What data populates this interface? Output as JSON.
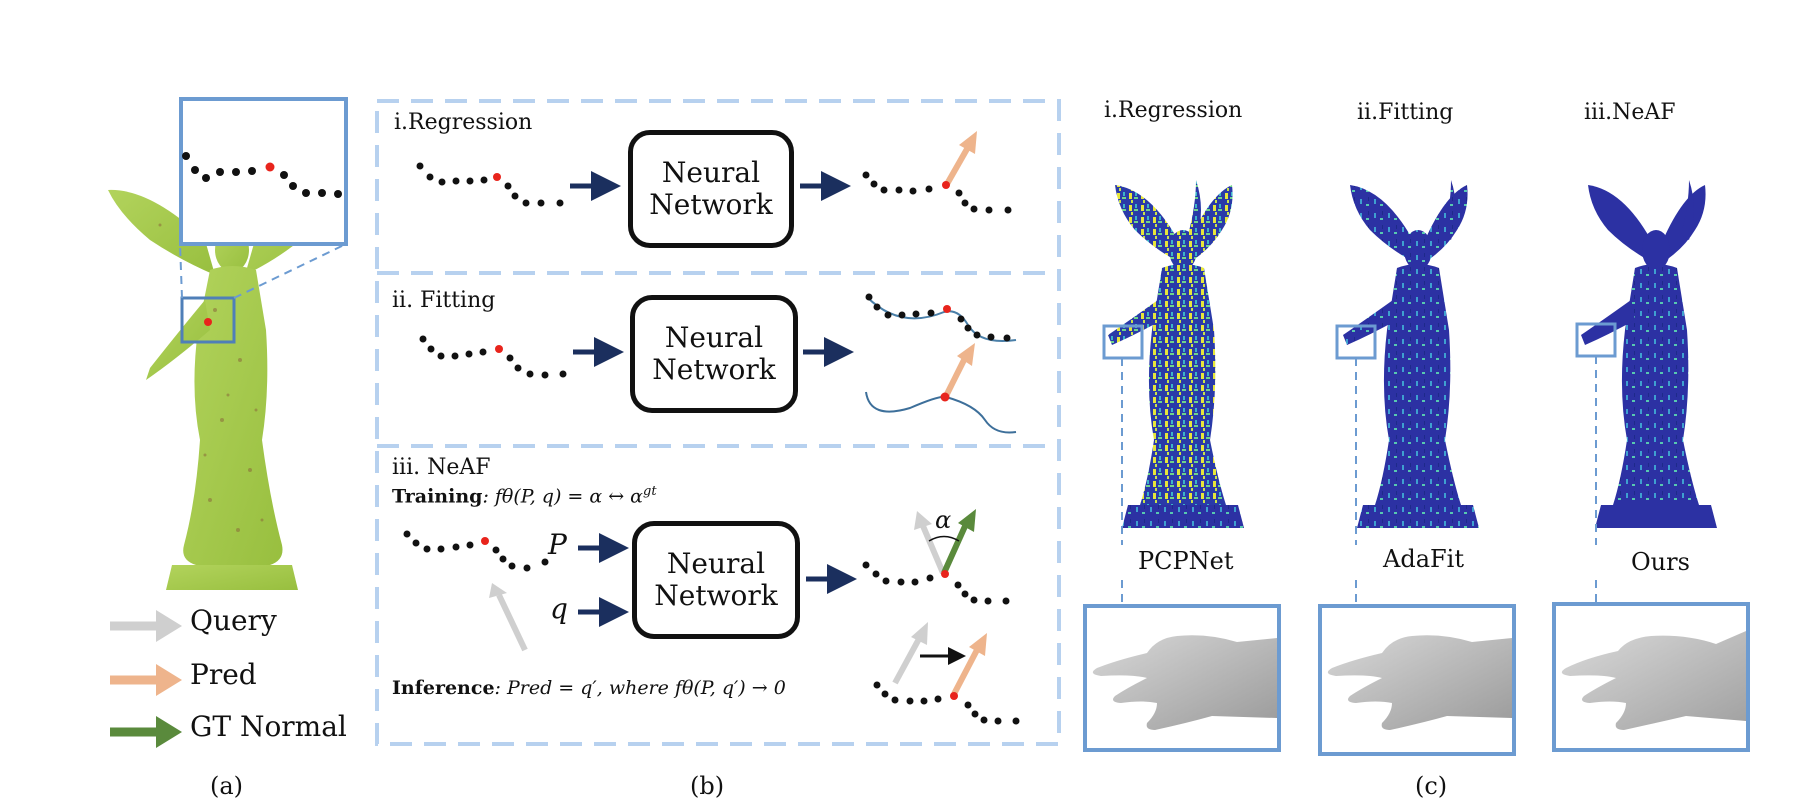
{
  "panel_a": {
    "caption": "(a)",
    "legend": [
      {
        "label": "Query",
        "color": "#cfcfcf"
      },
      {
        "label": "Pred",
        "color": "#eeb48c"
      },
      {
        "label": "GT Normal",
        "color": "#5a8a3c"
      }
    ]
  },
  "panel_b": {
    "caption": "(b)",
    "regression": {
      "title": "i.Regression",
      "box_label_1": "Neural",
      "box_label_2": "Network"
    },
    "fitting": {
      "title": "ii. Fitting",
      "box_label_1": "Neural",
      "box_label_2": "Network"
    },
    "neaf": {
      "title": "iii. NeAF",
      "training_label": "Training",
      "training_eq": ": fθ(P, q) = α ↔ α",
      "training_sup": "gt",
      "inference_label": "Inference",
      "inference_eq": ": Pred = q′, where fθ(P, q′) → 0",
      "input_p": "P",
      "input_q": "q",
      "angle": "α",
      "box_label_1": "Neural",
      "box_label_2": "Network"
    }
  },
  "panel_c": {
    "caption": "(c)",
    "columns": [
      {
        "heading": "i.Regression",
        "model": "PCPNet"
      },
      {
        "heading": "ii.Fitting",
        "model": "AdaFit"
      },
      {
        "heading": "iii.NeAF",
        "model": "Ours"
      }
    ]
  },
  "colors": {
    "statue_green": "#a3c94a",
    "zoom_blue": "#6c9bd1",
    "dash_blue": "#b7d1ef",
    "arrow_navy": "#1b2f5e",
    "query_gray": "#cfcfcf",
    "pred_orange": "#eeb48c",
    "gt_green": "#5a8a3c",
    "heat_blue": "#2b2f9e",
    "heat_yellow": "#e6e63a",
    "point_red": "#e8241c"
  }
}
